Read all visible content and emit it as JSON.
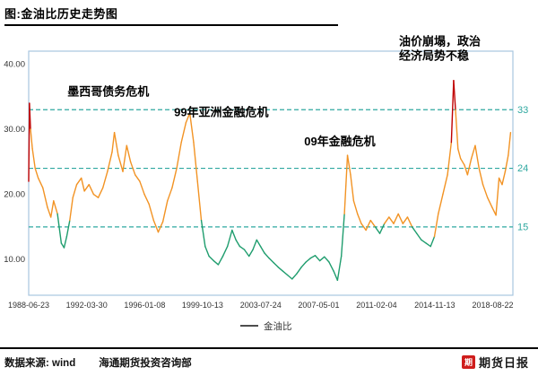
{
  "title": "图:金油比历史走势图",
  "legend": {
    "label": "金油比"
  },
  "footer": {
    "source": "数据来源: wind",
    "org": "海通期货投资咨询部",
    "logo_icon_char": "期",
    "logo_text": "期货日报"
  },
  "chart_data": {
    "type": "line",
    "title": "金油比历史走势图",
    "xlabel": "",
    "ylabel": "",
    "xlim": [
      1988.48,
      2019.95
    ],
    "ylim": [
      4.5,
      42
    ],
    "grid": false,
    "legend_position": "bottom-center",
    "x_ticks": [
      {
        "label": "1988-06-23",
        "x": 1988.48
      },
      {
        "label": "1992-03-30",
        "x": 1992.25
      },
      {
        "label": "1996-01-08",
        "x": 1996.02
      },
      {
        "label": "1999-10-13",
        "x": 1999.78
      },
      {
        "label": "2003-07-24",
        "x": 2003.56
      },
      {
        "label": "2007-05-01",
        "x": 2007.33
      },
      {
        "label": "2011-02-04",
        "x": 2011.09
      },
      {
        "label": "2014-11-13",
        "x": 2014.87
      },
      {
        "label": "2018-08-22",
        "x": 2018.64
      }
    ],
    "y_ticks": [
      {
        "label": "10.00",
        "v": 10
      },
      {
        "label": "20.00",
        "v": 20
      },
      {
        "label": "30.00",
        "v": 30
      },
      {
        "label": "40.00",
        "v": 40
      }
    ],
    "ref_lines": [
      {
        "v": 15,
        "label": "15"
      },
      {
        "v": 24,
        "label": "24"
      },
      {
        "v": 33,
        "label": "33"
      }
    ],
    "thresholds": {
      "low": 15,
      "high": 33
    },
    "colors": {
      "low": "#1f9d6e",
      "mid": "#f29324",
      "high": "#c00000",
      "ref": "#2fa8a0",
      "border": "#a8c6df",
      "legend_line": "#4d4d4d"
    },
    "series": [
      {
        "name": "金油比",
        "points": [
          [
            1988.48,
            22.0
          ],
          [
            1988.53,
            34.0
          ],
          [
            1988.6,
            30.0
          ],
          [
            1988.72,
            27.0
          ],
          [
            1988.9,
            24.0
          ],
          [
            1989.1,
            22.5
          ],
          [
            1989.4,
            21.0
          ],
          [
            1989.7,
            18.0
          ],
          [
            1989.92,
            16.5
          ],
          [
            1990.1,
            19.0
          ],
          [
            1990.35,
            17.0
          ],
          [
            1990.6,
            12.5
          ],
          [
            1990.78,
            11.8
          ],
          [
            1990.95,
            13.5
          ],
          [
            1991.15,
            16.0
          ],
          [
            1991.35,
            19.5
          ],
          [
            1991.6,
            21.5
          ],
          [
            1991.9,
            22.5
          ],
          [
            1992.1,
            20.5
          ],
          [
            1992.4,
            21.5
          ],
          [
            1992.7,
            20.0
          ],
          [
            1993.0,
            19.5
          ],
          [
            1993.3,
            21.0
          ],
          [
            1993.6,
            23.5
          ],
          [
            1993.9,
            26.5
          ],
          [
            1994.05,
            29.5
          ],
          [
            1994.3,
            26.0
          ],
          [
            1994.6,
            23.5
          ],
          [
            1994.85,
            27.5
          ],
          [
            1995.1,
            25.0
          ],
          [
            1995.4,
            23.0
          ],
          [
            1995.7,
            22.0
          ],
          [
            1996.0,
            20.0
          ],
          [
            1996.3,
            18.5
          ],
          [
            1996.6,
            16.0
          ],
          [
            1996.9,
            14.2
          ],
          [
            1997.2,
            15.8
          ],
          [
            1997.5,
            19.0
          ],
          [
            1997.8,
            21.0
          ],
          [
            1998.1,
            24.0
          ],
          [
            1998.4,
            28.0
          ],
          [
            1998.7,
            31.0
          ],
          [
            1998.95,
            32.5
          ],
          [
            1999.2,
            28.0
          ],
          [
            1999.45,
            22.0
          ],
          [
            1999.7,
            16.0
          ],
          [
            1999.95,
            12.0
          ],
          [
            2000.2,
            10.5
          ],
          [
            2000.5,
            9.8
          ],
          [
            2000.8,
            9.2
          ],
          [
            2001.1,
            10.5
          ],
          [
            2001.4,
            12.0
          ],
          [
            2001.7,
            14.5
          ],
          [
            2001.95,
            13.0
          ],
          [
            2002.2,
            12.0
          ],
          [
            2002.5,
            11.5
          ],
          [
            2002.8,
            10.5
          ],
          [
            2003.05,
            11.5
          ],
          [
            2003.3,
            13.0
          ],
          [
            2003.55,
            12.0
          ],
          [
            2003.8,
            11.0
          ],
          [
            2004.1,
            10.2
          ],
          [
            2004.4,
            9.5
          ],
          [
            2004.7,
            8.8
          ],
          [
            2005.0,
            8.2
          ],
          [
            2005.3,
            7.6
          ],
          [
            2005.6,
            7.0
          ],
          [
            2005.9,
            7.8
          ],
          [
            2006.2,
            8.8
          ],
          [
            2006.5,
            9.6
          ],
          [
            2006.8,
            10.2
          ],
          [
            2007.1,
            10.6
          ],
          [
            2007.4,
            9.8
          ],
          [
            2007.7,
            10.4
          ],
          [
            2008.0,
            9.6
          ],
          [
            2008.3,
            8.2
          ],
          [
            2008.55,
            6.8
          ],
          [
            2008.8,
            10.5
          ],
          [
            2009.0,
            17.0
          ],
          [
            2009.2,
            26.0
          ],
          [
            2009.4,
            23.0
          ],
          [
            2009.6,
            19.0
          ],
          [
            2009.85,
            17.0
          ],
          [
            2010.1,
            15.5
          ],
          [
            2010.4,
            14.5
          ],
          [
            2010.7,
            16.0
          ],
          [
            2011.0,
            15.0
          ],
          [
            2011.3,
            14.0
          ],
          [
            2011.6,
            15.5
          ],
          [
            2011.9,
            16.5
          ],
          [
            2012.2,
            15.5
          ],
          [
            2012.5,
            17.0
          ],
          [
            2012.8,
            15.5
          ],
          [
            2013.1,
            16.5
          ],
          [
            2013.4,
            15.0
          ],
          [
            2013.7,
            14.0
          ],
          [
            2014.0,
            13.0
          ],
          [
            2014.3,
            12.5
          ],
          [
            2014.6,
            12.0
          ],
          [
            2014.85,
            13.5
          ],
          [
            2015.1,
            17.0
          ],
          [
            2015.4,
            20.0
          ],
          [
            2015.7,
            23.0
          ],
          [
            2015.95,
            28.0
          ],
          [
            2016.1,
            37.5
          ],
          [
            2016.22,
            33.0
          ],
          [
            2016.38,
            27.0
          ],
          [
            2016.55,
            25.5
          ],
          [
            2016.8,
            24.5
          ],
          [
            2017.0,
            23.0
          ],
          [
            2017.25,
            25.5
          ],
          [
            2017.5,
            27.5
          ],
          [
            2017.75,
            24.0
          ],
          [
            2018.0,
            21.5
          ],
          [
            2018.3,
            19.5
          ],
          [
            2018.6,
            18.0
          ],
          [
            2018.85,
            16.8
          ],
          [
            2019.05,
            22.5
          ],
          [
            2019.25,
            21.5
          ],
          [
            2019.45,
            23.5
          ],
          [
            2019.65,
            26.0
          ],
          [
            2019.8,
            29.5
          ]
        ]
      }
    ],
    "annotations": [
      {
        "lines": [
          "墨西哥债务危机"
        ],
        "x": 1991.0,
        "y": 35.2,
        "anchor": "start"
      },
      {
        "lines": [
          "99年亚洲金融危机"
        ],
        "x": 2001.0,
        "y": 32.0,
        "anchor": "middle"
      },
      {
        "lines": [
          "09年金融危机"
        ],
        "x": 2008.7,
        "y": 27.5,
        "anchor": "middle"
      },
      {
        "lines": [
          "油价崩塌，政治",
          "经济局势不稳"
        ],
        "x": 2012.55,
        "y": 42.9,
        "anchor": "start"
      }
    ]
  }
}
